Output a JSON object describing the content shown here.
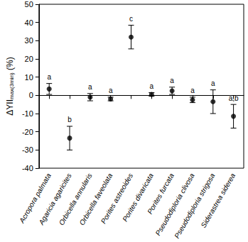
{
  "chart_data": {
    "type": "scatter",
    "ylabel": {
      "main": "ΔYII",
      "sub": "max(3min)",
      "unit": "(%)"
    },
    "categories": [
      "Acropora palmata",
      "Agaricia agaricites",
      "Orbicella annularis",
      "Orbicella faveolata",
      "Porites astreoides",
      "Porites divaricata",
      "Porites furcata",
      "Pseudodiploria clivosa",
      "Pseudodiploria strigosa",
      "Siderastrea siderea"
    ],
    "values": [
      3.5,
      -23.5,
      -1,
      -2,
      32,
      0.5,
      2.5,
      -2.5,
      -3.5,
      -11.5
    ],
    "errors": [
      3,
      6.5,
      2,
      1,
      6.5,
      1,
      2,
      1.5,
      6.5,
      6.5
    ],
    "letters": [
      "a",
      "b",
      "a",
      "a",
      "c",
      "a",
      "a",
      "a",
      "a",
      "a,b"
    ],
    "color": "#000000",
    "marker": "circle",
    "ylim": [
      -40,
      50
    ],
    "yticks": [
      -40,
      -30,
      -20,
      -10,
      0,
      10,
      20,
      30,
      40,
      50
    ],
    "grid": false
  }
}
